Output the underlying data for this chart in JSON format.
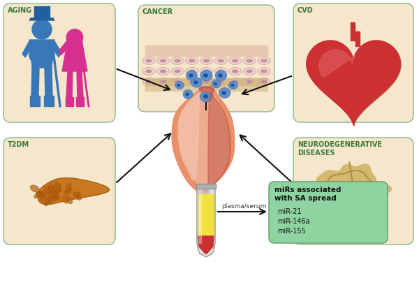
{
  "bg_color": "#ffffff",
  "box_fill": "#f5e6cc",
  "box_edge": "#8ab88a",
  "aging_label": "AGING",
  "cancer_label": "CANCER",
  "cvd_label": "CVD",
  "t2dm_label": "T2DM",
  "neuro_label": "NEURODEGENERATIVE\nDISEASES",
  "mir_box_fill": "#8fd4a0",
  "mir_box_edge": "#5a9a6a",
  "mir_title": "miRs associated\nwith SA spread",
  "mir_items": [
    "miR-21",
    "miR-146a",
    "miR-155"
  ],
  "plasma_label": "plasma/serum",
  "arrow_color": "#111111",
  "label_color": "#3a7a3a",
  "label_fontsize": 7,
  "mir_title_fontsize": 7.5,
  "mir_item_fontsize": 7
}
